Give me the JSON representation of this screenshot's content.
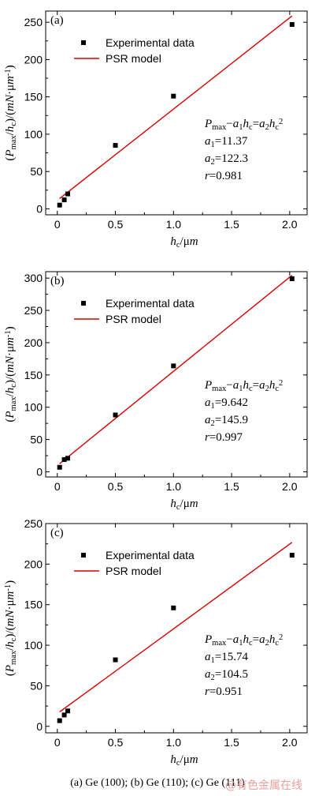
{
  "caption": "(a) Ge (100); (b) Ge (110); (c) Ge (111)",
  "watermark": "@有色金属在线",
  "colors": {
    "fit_line": "#d40000",
    "marker": "#000000",
    "axis": "#000000"
  },
  "chart_data": [
    {
      "type": "scatter",
      "panel_label": "(a)",
      "xlabel": "h_c/μm",
      "ylabel": "(P_max/h_c)/(mN·μm^-1)",
      "xlim": [
        -0.1,
        2.15
      ],
      "ylim": [
        -8,
        265
      ],
      "xticks": [
        "0",
        "0.5",
        "1.0",
        "1.5",
        "2.0"
      ],
      "yticks": [
        "0",
        "50",
        "100",
        "150",
        "200",
        "250"
      ],
      "legend": [
        "Experimental data",
        "PSR model"
      ],
      "legend_position": "top-left",
      "series": [
        {
          "name": "Experimental data",
          "points": [
            [
              0.02,
              5
            ],
            [
              0.06,
              12
            ],
            [
              0.09,
              20
            ],
            [
              0.5,
              85
            ],
            [
              1.0,
              151
            ],
            [
              2.02,
              247
            ]
          ]
        },
        {
          "name": "PSR model",
          "line": [
            [
              0.02,
              13.8
            ],
            [
              2.02,
              258.4
            ]
          ]
        }
      ],
      "equation": {
        "formula": "P_max−a_1h_c=a_2h_c^2",
        "a1": "a_1=11.37",
        "a2": "a_2=122.3",
        "r": "r=0.981"
      }
    },
    {
      "type": "scatter",
      "panel_label": "(b)",
      "xlabel": "h_c/μm",
      "ylabel": "(P_max/h_c)/(mN·μm^-1)",
      "xlim": [
        -0.1,
        2.15
      ],
      "ylim": [
        -8,
        310
      ],
      "xticks": [
        "0",
        "0.5",
        "1.0",
        "1.5",
        "2.0"
      ],
      "yticks": [
        "0",
        "50",
        "100",
        "150",
        "200",
        "250",
        "300"
      ],
      "legend": [
        "Experimental data",
        "PSR model"
      ],
      "legend_position": "top-left",
      "series": [
        {
          "name": "Experimental data",
          "points": [
            [
              0.02,
              7
            ],
            [
              0.06,
              19
            ],
            [
              0.09,
              21
            ],
            [
              0.5,
              88
            ],
            [
              1.0,
              164
            ],
            [
              2.02,
              299
            ]
          ]
        },
        {
          "name": "PSR model",
          "line": [
            [
              0.02,
              12.6
            ],
            [
              2.02,
              304.4
            ]
          ]
        }
      ],
      "equation": {
        "formula": "P_max−a_1h_c=a_2h_c^2",
        "a1": "a_1=9.642",
        "a2": "a_2=145.9",
        "r": "r=0.997"
      }
    },
    {
      "type": "scatter",
      "panel_label": "(c)",
      "xlabel": "h_c/μm",
      "ylabel": "(P_max/h_c)/(mN·μm^-1)",
      "xlim": [
        -0.1,
        2.15
      ],
      "ylim": [
        -8,
        250
      ],
      "xticks": [
        "0",
        "0.5",
        "1.0",
        "1.5",
        "2.0"
      ],
      "yticks": [
        "0",
        "50",
        "100",
        "150",
        "200",
        "250"
      ],
      "legend": [
        "Experimental data",
        "PSR model"
      ],
      "legend_position": "top-left",
      "series": [
        {
          "name": "Experimental data",
          "points": [
            [
              0.02,
              7
            ],
            [
              0.06,
              14
            ],
            [
              0.09,
              19
            ],
            [
              0.5,
              82
            ],
            [
              1.0,
              146
            ],
            [
              2.02,
              211
            ]
          ]
        },
        {
          "name": "PSR model",
          "line": [
            [
              0.02,
              17.8
            ],
            [
              2.02,
              226.8
            ]
          ]
        }
      ],
      "equation": {
        "formula": "P_max−a_1h_c=a_2h_c^2",
        "a1": "a_1=15.74",
        "a2": "a_2=104.5",
        "r": "r=0.951"
      }
    }
  ]
}
